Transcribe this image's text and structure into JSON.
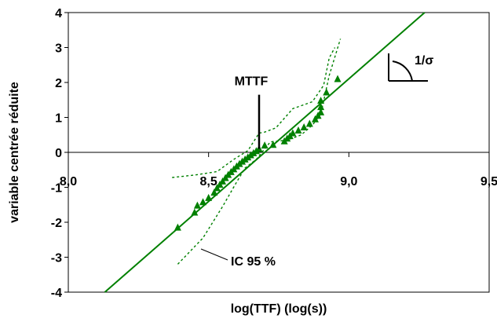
{
  "chart_data": {
    "type": "scatter",
    "title": "",
    "xlabel": "log(TTF) (log(s))",
    "ylabel": "variable centrée réduite",
    "xlim": [
      8.0,
      9.5
    ],
    "ylim": [
      -4,
      4
    ],
    "xticks": [
      "8,0",
      "8,5",
      "9,0",
      "9,5"
    ],
    "yticks": [
      "4",
      "3",
      "2",
      "1",
      "0",
      "-1",
      "-2",
      "-3",
      "-4"
    ],
    "grid": false,
    "colors": {
      "series": "#008000",
      "annotation": "#000000"
    },
    "series": [
      {
        "type": "scatter",
        "marker": "triangle",
        "points": [
          [
            8.39,
            -2.15
          ],
          [
            8.45,
            -1.72
          ],
          [
            8.46,
            -1.52
          ],
          [
            8.48,
            -1.42
          ],
          [
            8.5,
            -1.3
          ],
          [
            8.52,
            -1.15
          ],
          [
            8.53,
            -1.02
          ],
          [
            8.54,
            -0.92
          ],
          [
            8.55,
            -0.83
          ],
          [
            8.56,
            -0.73
          ],
          [
            8.57,
            -0.64
          ],
          [
            8.58,
            -0.56
          ],
          [
            8.59,
            -0.48
          ],
          [
            8.6,
            -0.4
          ],
          [
            8.61,
            -0.33
          ],
          [
            8.62,
            -0.26
          ],
          [
            8.63,
            -0.2
          ],
          [
            8.64,
            -0.14
          ],
          [
            8.65,
            -0.08
          ],
          [
            8.66,
            -0.02
          ],
          [
            8.67,
            0.04
          ],
          [
            8.68,
            0.1
          ],
          [
            8.7,
            0.2
          ],
          [
            8.73,
            0.22
          ],
          [
            8.77,
            0.32
          ],
          [
            8.78,
            0.4
          ],
          [
            8.79,
            0.47
          ],
          [
            8.8,
            0.55
          ],
          [
            8.82,
            0.63
          ],
          [
            8.84,
            0.72
          ],
          [
            8.86,
            0.82
          ],
          [
            8.88,
            0.95
          ],
          [
            8.89,
            1.05
          ],
          [
            8.9,
            1.15
          ],
          [
            8.9,
            1.3
          ],
          [
            8.9,
            1.48
          ],
          [
            8.92,
            1.72
          ],
          [
            8.96,
            2.1
          ]
        ]
      },
      {
        "type": "line",
        "style": "solid",
        "points": [
          [
            8.13,
            -4.0
          ],
          [
            9.27,
            4.0
          ]
        ]
      },
      {
        "type": "line",
        "style": "dashed",
        "points": [
          [
            8.39,
            -3.2
          ],
          [
            8.48,
            -2.45
          ],
          [
            8.55,
            -1.55
          ],
          [
            8.6,
            -0.85
          ],
          [
            8.63,
            -0.45
          ],
          [
            8.67,
            -0.2
          ],
          [
            8.72,
            0.3
          ],
          [
            8.78,
            0.35
          ],
          [
            8.83,
            0.5
          ],
          [
            8.87,
            0.78
          ],
          [
            8.9,
            1.1
          ],
          [
            8.93,
            2.2
          ],
          [
            8.97,
            3.25
          ]
        ]
      },
      {
        "type": "line",
        "style": "dashed",
        "points": [
          [
            8.37,
            -0.72
          ],
          [
            8.45,
            -0.65
          ],
          [
            8.53,
            -0.55
          ],
          [
            8.59,
            -0.2
          ],
          [
            8.64,
            0.05
          ],
          [
            8.68,
            0.55
          ],
          [
            8.7,
            0.58
          ],
          [
            8.74,
            0.7
          ],
          [
            8.8,
            1.25
          ],
          [
            8.87,
            1.45
          ],
          [
            8.91,
            1.92
          ],
          [
            8.93,
            2.7
          ],
          [
            8.95,
            3.0
          ]
        ]
      }
    ],
    "annotations": {
      "mttf_label": "MTTF",
      "mttf_x": 8.68,
      "mttf_range": [
        0.1,
        1.65
      ],
      "ic_label": "IC 95 %",
      "slope_label": "1/σ"
    }
  }
}
